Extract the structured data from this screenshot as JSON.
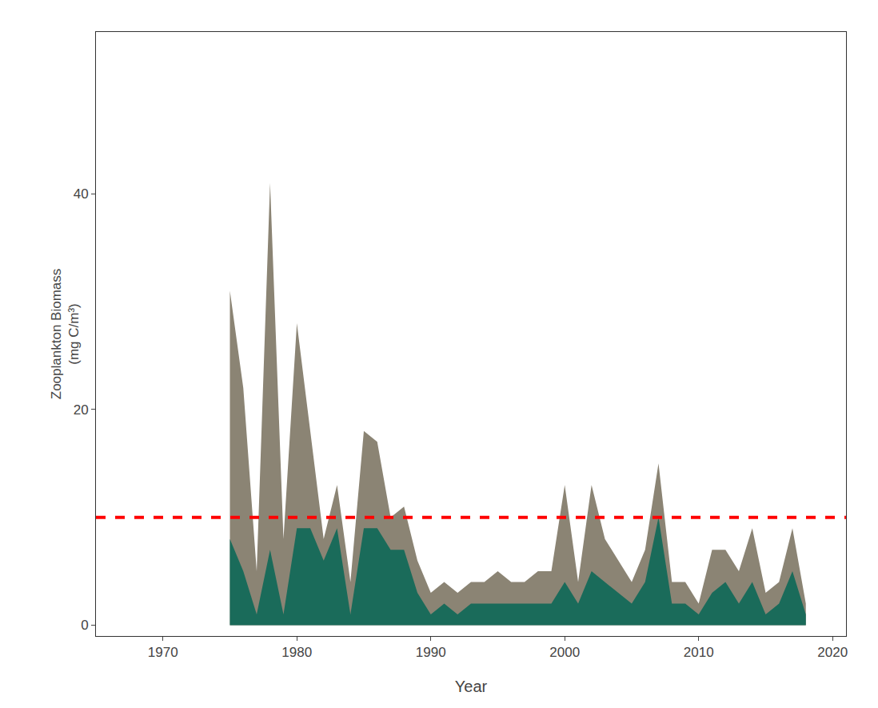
{
  "chart_data": {
    "type": "area",
    "stacked": false,
    "xlabel": "Year",
    "ylabel": "Zooplankton Biomass\n(mg C/m³)",
    "x": [
      1975,
      1976,
      1977,
      1978,
      1979,
      1980,
      1981,
      1982,
      1983,
      1984,
      1985,
      1986,
      1987,
      1988,
      1989,
      1990,
      1991,
      1992,
      1993,
      1994,
      1995,
      1996,
      1997,
      1998,
      1999,
      2000,
      2001,
      2002,
      2003,
      2004,
      2005,
      2006,
      2007,
      2008,
      2009,
      2010,
      2011,
      2012,
      2013,
      2014,
      2015,
      2016,
      2017,
      2018
    ],
    "series": [
      {
        "color": "#8B8474",
        "values": [
          31,
          22,
          5,
          41,
          8,
          28,
          18,
          8,
          13,
          4,
          18,
          17,
          10,
          11,
          6,
          3,
          4,
          3,
          4,
          4,
          5,
          4,
          4,
          5,
          5,
          13,
          4,
          13,
          8,
          6,
          4,
          7,
          15,
          4,
          4,
          2,
          7,
          7,
          5,
          9,
          3,
          4,
          9,
          2
        ]
      },
      {
        "color": "#1a6b5a",
        "values": [
          8,
          5,
          1,
          7,
          1,
          9,
          9,
          6,
          9,
          1,
          9,
          9,
          7,
          7,
          3,
          1,
          2,
          1,
          2,
          2,
          2,
          2,
          2,
          2,
          2,
          4,
          2,
          5,
          4,
          3,
          2,
          4,
          10,
          2,
          2,
          1,
          3,
          4,
          2,
          4,
          1,
          2,
          5,
          1
        ]
      }
    ],
    "reference_line": {
      "y": 10,
      "color": "#FF0000",
      "line_style": "dashed"
    },
    "xlim": [
      1965,
      2021
    ],
    "ylim": [
      -1,
      55
    ],
    "xticks": [
      1970,
      1980,
      1990,
      2000,
      2010,
      2020
    ],
    "yticks": [
      0,
      20,
      40
    ],
    "grid": false
  }
}
